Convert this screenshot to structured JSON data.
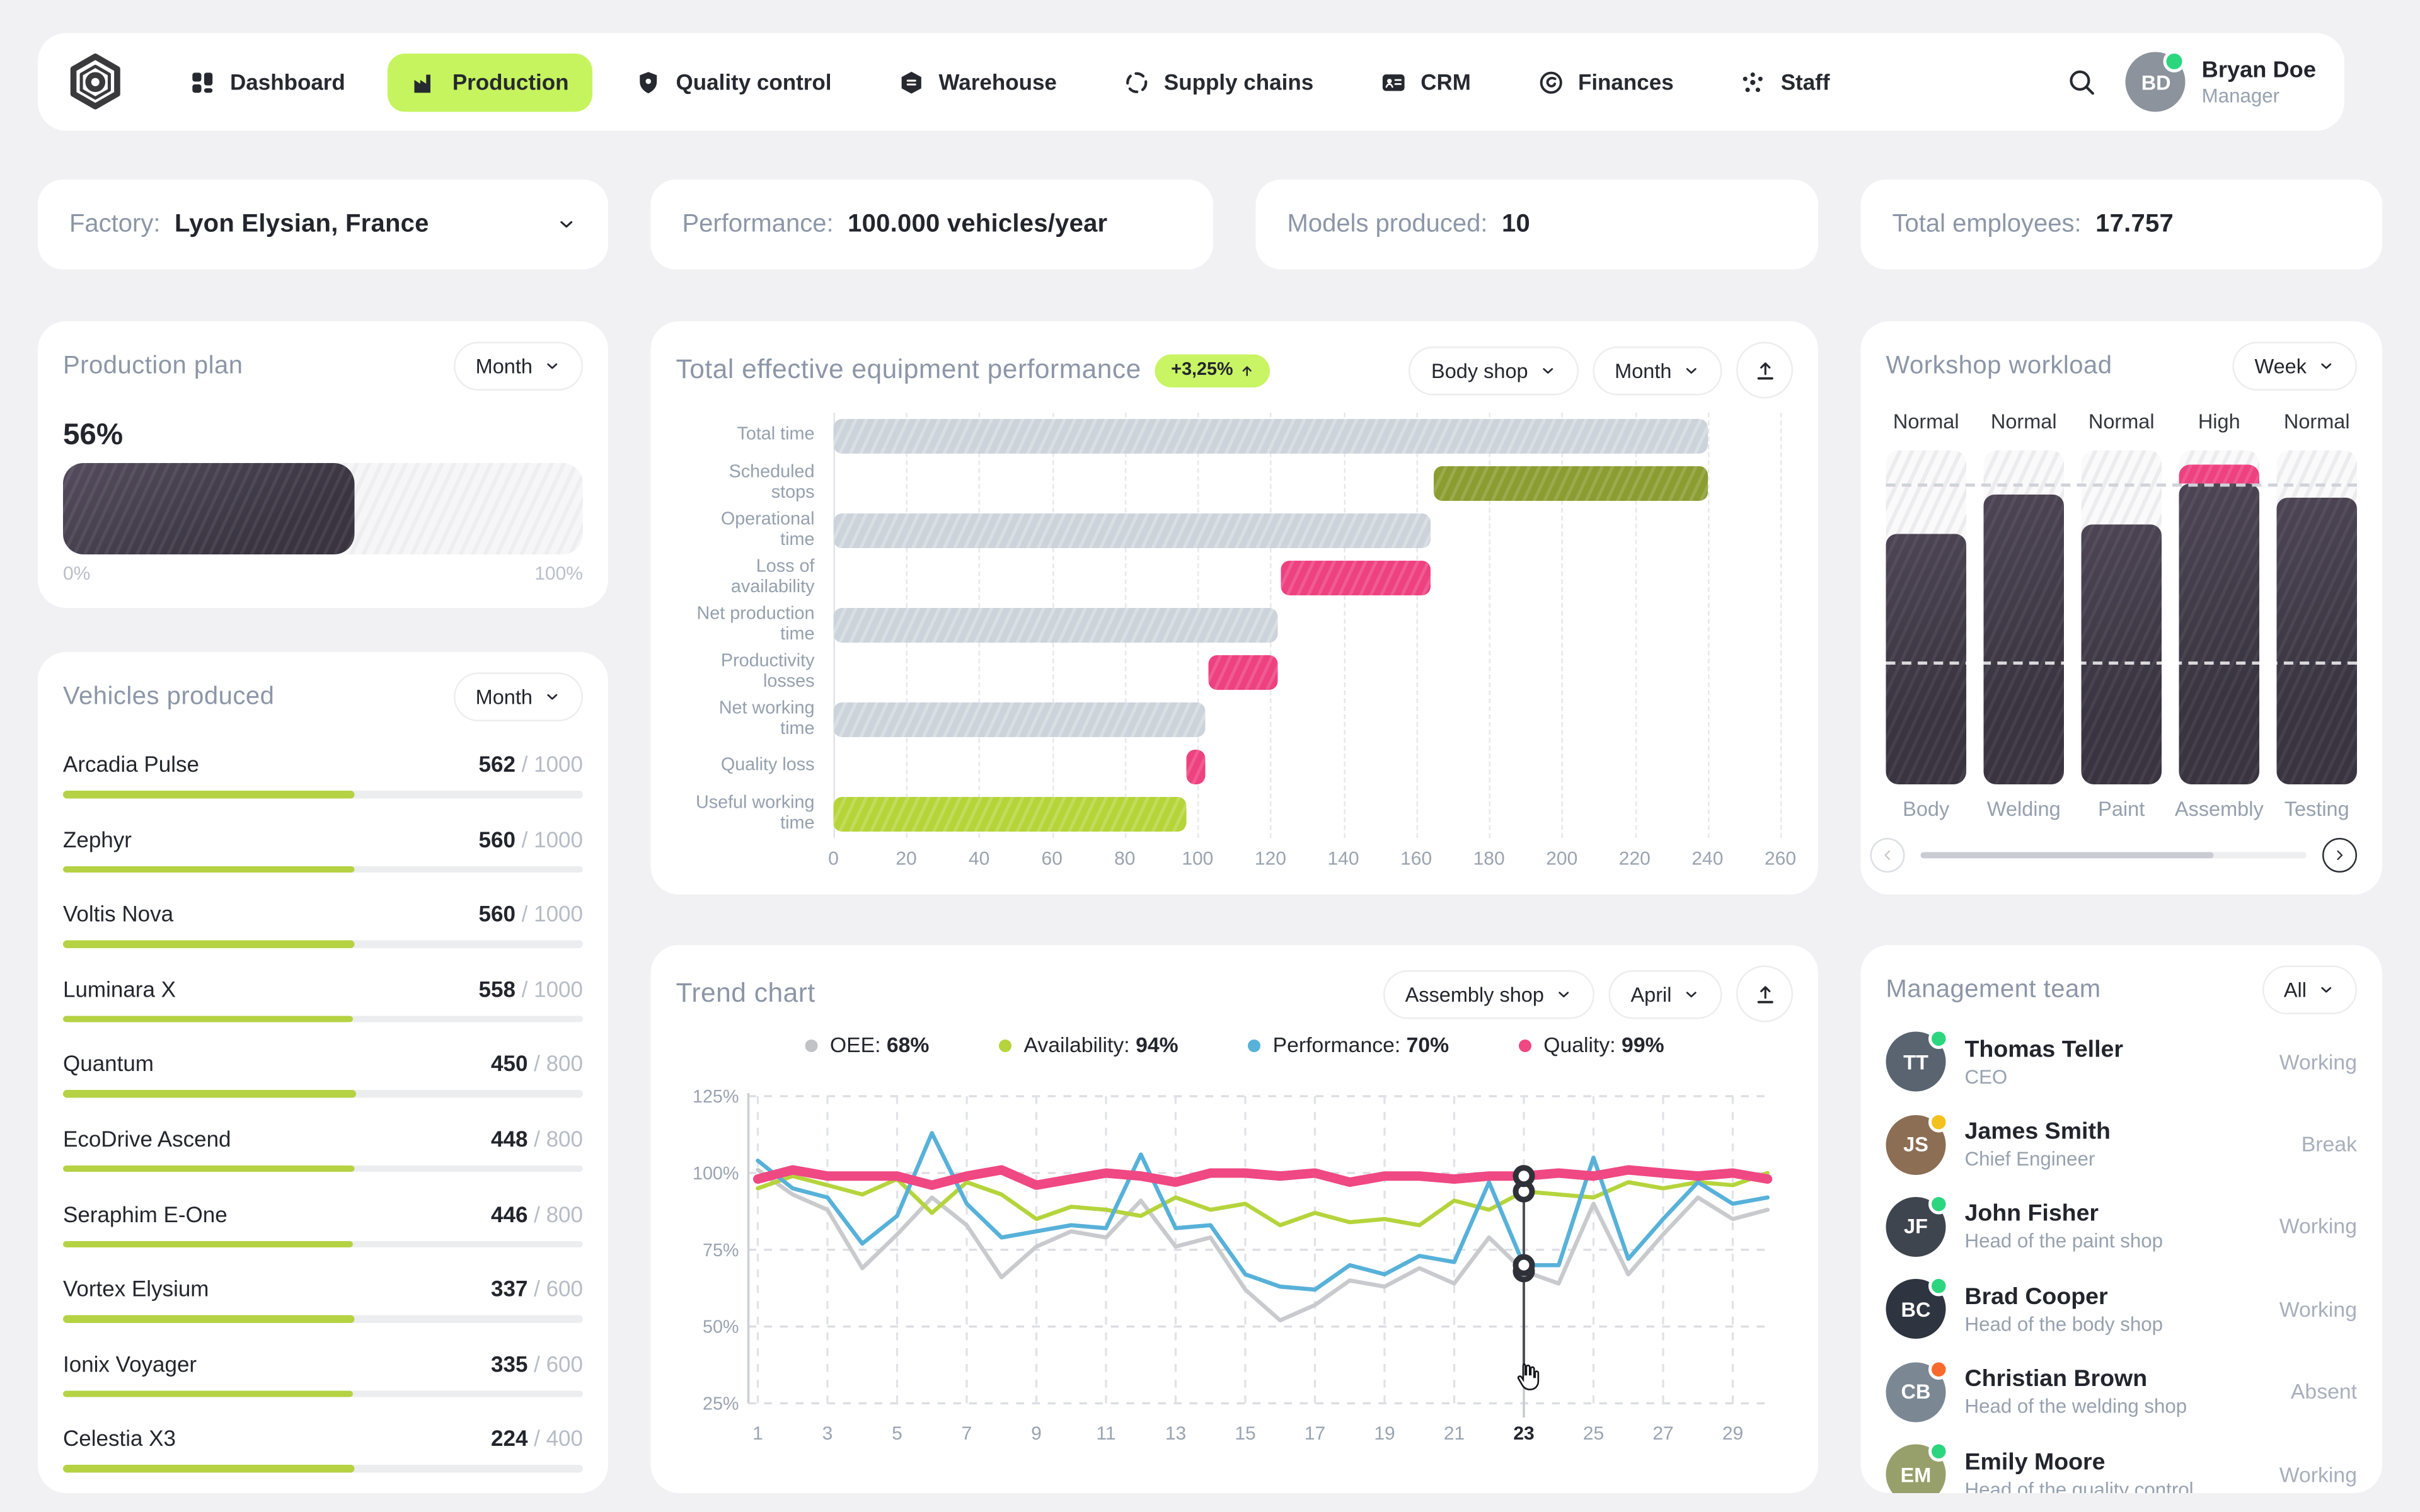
{
  "nav": {
    "items": [
      {
        "label": "Dashboard",
        "icon": "dashboard",
        "active": false
      },
      {
        "label": "Production",
        "icon": "production",
        "active": true
      },
      {
        "label": "Quality control",
        "icon": "quality",
        "active": false
      },
      {
        "label": "Warehouse",
        "icon": "warehouse",
        "active": false
      },
      {
        "label": "Supply chains",
        "icon": "supply",
        "active": false
      },
      {
        "label": "CRM",
        "icon": "crm",
        "active": false
      },
      {
        "label": "Finances",
        "icon": "finances",
        "active": false
      },
      {
        "label": "Staff",
        "icon": "staff",
        "active": false
      }
    ],
    "user": {
      "name": "Bryan Doe",
      "role": "Manager"
    }
  },
  "stats": [
    {
      "label": "Factory:",
      "value": "Lyon Elysian,  France",
      "dropdown": true
    },
    {
      "label": "Performance:",
      "value": "100.000 vehicles/year",
      "dropdown": false
    },
    {
      "label": "Models produced:",
      "value": "10",
      "dropdown": false
    },
    {
      "label": "Total employees:",
      "value": "17.757",
      "dropdown": false
    }
  ],
  "production_plan": {
    "title": "Production plan",
    "period": "Month",
    "percent": "56%",
    "fraction": 0.56,
    "scale_min": "0%",
    "scale_max": "100%"
  },
  "vehicles": {
    "title": "Vehicles produced",
    "period": "Month",
    "items": [
      {
        "name": "Arcadia Pulse",
        "produced": 562,
        "target": 1000
      },
      {
        "name": "Zephyr",
        "produced": 560,
        "target": 1000
      },
      {
        "name": "Voltis Nova",
        "produced": 560,
        "target": 1000
      },
      {
        "name": "Luminara X",
        "produced": 558,
        "target": 1000
      },
      {
        "name": "Quantum",
        "produced": 450,
        "target": 800
      },
      {
        "name": "EcoDrive Ascend",
        "produced": 448,
        "target": 800
      },
      {
        "name": "Seraphim E-One",
        "produced": 446,
        "target": 800
      },
      {
        "name": "Vortex Elysium",
        "produced": 337,
        "target": 600
      },
      {
        "name": "Ionix Voyager",
        "produced": 335,
        "target": 600
      },
      {
        "name": "Celestia X3",
        "produced": 224,
        "target": 400
      }
    ]
  },
  "teep": {
    "title": "Total effective equipment performance",
    "badge": "+3,25%",
    "shop_filter": "Body shop",
    "period_filter": "Month",
    "chart_data": {
      "type": "bar",
      "orientation": "horizontal",
      "xlim": [
        0,
        260
      ],
      "tick_step": 20,
      "colors": {
        "grey": "#ccd3da",
        "pink": "#ee4180",
        "lime": "#b5d438",
        "olive": "#8b9d31"
      },
      "bars": [
        {
          "label": "Total time",
          "start": 0,
          "end": 240,
          "color": "grey"
        },
        {
          "label": "Scheduled stops",
          "start": 165,
          "end": 240,
          "color": "olive"
        },
        {
          "label": "Operational time",
          "start": 0,
          "end": 164,
          "color": "grey"
        },
        {
          "label": "Loss of availability",
          "start": 123,
          "end": 164,
          "color": "pink"
        },
        {
          "label": "Net production time",
          "start": 0,
          "end": 122,
          "color": "grey"
        },
        {
          "label": "Productivity losses",
          "start": 103,
          "end": 122,
          "color": "pink"
        },
        {
          "label": "Net working time",
          "start": 0,
          "end": 102,
          "color": "grey"
        },
        {
          "label": "Quality loss",
          "start": 97,
          "end": 102,
          "color": "pink"
        },
        {
          "label": "Useful working time",
          "start": 0,
          "end": 97,
          "color": "lime"
        }
      ]
    }
  },
  "trend": {
    "title": "Trend chart",
    "shop_filter": "Assembly shop",
    "period_filter": "April",
    "legend": [
      {
        "label": "OEE:",
        "value": "68%",
        "color": "#c2c3c7"
      },
      {
        "label": "Availability:",
        "value": "94%",
        "color": "#b5d43c"
      },
      {
        "label": "Performance:",
        "value": "70%",
        "color": "#57b1d9"
      },
      {
        "label": "Quality:",
        "value": "99%",
        "color": "#ef4883"
      }
    ],
    "chart_data": {
      "type": "line",
      "days": 30,
      "highlight_day": 23,
      "ylim": [
        25,
        125
      ],
      "yticks": [
        25,
        50,
        75,
        100,
        125
      ],
      "xticks": [
        1,
        3,
        5,
        7,
        9,
        11,
        13,
        15,
        17,
        19,
        21,
        23,
        25,
        27,
        29
      ],
      "grid": true,
      "series": [
        {
          "name": "OEE",
          "color": "#c9cacd",
          "width": 2.6,
          "values": [
            101,
            93,
            88,
            69,
            80,
            92,
            83,
            66,
            76,
            81,
            79,
            91,
            76,
            79,
            62,
            52,
            57,
            65,
            63,
            69,
            64,
            79,
            68,
            64,
            90,
            67,
            80,
            92,
            85,
            88
          ]
        },
        {
          "name": "Availability",
          "color": "#b5d43c",
          "width": 2.6,
          "values": [
            95,
            99,
            96,
            93,
            98,
            87,
            97,
            93,
            85,
            89,
            88,
            86,
            92,
            88,
            90,
            83,
            87,
            84,
            85,
            83,
            91,
            88,
            94,
            93,
            92,
            97,
            95,
            97,
            96,
            100
          ]
        },
        {
          "name": "Performance",
          "color": "#57b1d9",
          "width": 2.6,
          "values": [
            104,
            95,
            92,
            77,
            86,
            113,
            90,
            79,
            81,
            83,
            82,
            106,
            82,
            83,
            67,
            63,
            62,
            70,
            67,
            73,
            71,
            97,
            70,
            70,
            105,
            72,
            85,
            97,
            90,
            92
          ]
        },
        {
          "name": "Quality",
          "color": "#ef4883",
          "width": 6,
          "values": [
            98,
            101,
            99,
            99,
            99,
            96,
            99,
            101,
            96,
            98,
            100,
            99,
            97,
            100,
            100,
            99,
            100,
            97,
            99,
            99,
            98,
            99,
            99,
            100,
            99,
            101,
            100,
            99,
            100,
            98
          ]
        }
      ]
    }
  },
  "workload": {
    "title": "Workshop workload",
    "period": "Week",
    "threshold_upper": 0.9,
    "threshold_lower": 0.37,
    "columns": [
      {
        "name": "Body",
        "status": "Normal",
        "load": 0.75
      },
      {
        "name": "Welding",
        "status": "Normal",
        "load": 0.87
      },
      {
        "name": "Paint",
        "status": "Normal",
        "load": 0.78
      },
      {
        "name": "Assembly",
        "status": "High",
        "load": 0.96
      },
      {
        "name": "Testing",
        "status": "Normal",
        "load": 0.86
      }
    ]
  },
  "team": {
    "title": "Management team",
    "filter": "All",
    "members": [
      {
        "name": "Thomas Teller",
        "role": "CEO",
        "status": "Working",
        "dot": "#2bd67f",
        "ava": "#5a6470"
      },
      {
        "name": "James Smith",
        "role": "Chief Engineer",
        "status": "Break",
        "dot": "#f4c01e",
        "ava": "#8c6e54"
      },
      {
        "name": "John Fisher",
        "role": "Head of the paint shop",
        "status": "Working",
        "dot": "#2bd67f",
        "ava": "#3f454f"
      },
      {
        "name": "Brad Cooper",
        "role": "Head of the body shop",
        "status": "Working",
        "dot": "#2bd67f",
        "ava": "#2e3440"
      },
      {
        "name": "Christian Brown",
        "role": "Head of the welding shop",
        "status": "Absent",
        "dot": "#fb6a2c",
        "ava": "#7b8894"
      },
      {
        "name": "Emily Moore",
        "role": "Head of the quality control",
        "status": "Working",
        "dot": "#2bd67f",
        "ava": "#97a06b"
      }
    ]
  }
}
